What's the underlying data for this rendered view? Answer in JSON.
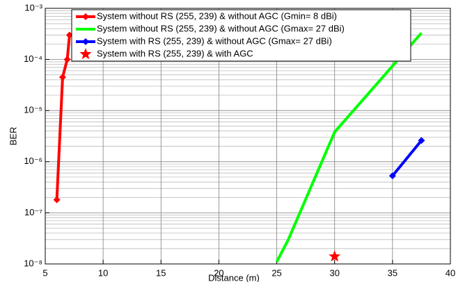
{
  "chart_data": {
    "type": "line",
    "xlabel": "Distance (m)",
    "ylabel": "BER",
    "xlim": [
      5,
      40
    ],
    "xticks": [
      5,
      10,
      15,
      20,
      25,
      30,
      35,
      40
    ],
    "ylim": [
      1e-08,
      0.001
    ],
    "yscale": "log",
    "yticks": [
      {
        "value": 1e-08,
        "label": "10⁻⁸"
      },
      {
        "value": 1e-07,
        "label": "10⁻⁷"
      },
      {
        "value": 1e-06,
        "label": "10⁻⁶"
      },
      {
        "value": 1e-05,
        "label": "10⁻⁵"
      },
      {
        "value": 0.0001,
        "label": "10⁻⁴"
      },
      {
        "value": 0.001,
        "label": "10⁻³"
      }
    ],
    "grid": true,
    "minor_grid": true,
    "legend": "upper left",
    "series": [
      {
        "name": "System without RS (255, 239) & without AGC (Gmin= 8 dBi)",
        "color": "#ff0000",
        "marker": "diamond",
        "x": [
          6,
          6.5,
          6.9,
          7.1
        ],
        "values": [
          1.8e-07,
          4.5e-05,
          0.0001,
          0.0003
        ]
      },
      {
        "name": "System without RS (255, 239) & without AGC (Gmax= 27 dBi)",
        "color": "#00ff00",
        "marker": "none",
        "x": [
          25,
          26,
          30,
          37.5
        ],
        "values": [
          1.1e-08,
          3e-08,
          3.8e-06,
          0.00033
        ]
      },
      {
        "name": "System with RS (255, 239) & without AGC (Gmax= 27 dBi)",
        "color": "#0000ff",
        "marker": "diamond",
        "x": [
          35,
          37.5
        ],
        "values": [
          5.3e-07,
          2.6e-06
        ]
      },
      {
        "name": "System with RS (255, 239) & with AGC",
        "color": "#ff0000",
        "marker": "star",
        "x": [
          30
        ],
        "values": [
          1.4e-08
        ]
      }
    ]
  }
}
